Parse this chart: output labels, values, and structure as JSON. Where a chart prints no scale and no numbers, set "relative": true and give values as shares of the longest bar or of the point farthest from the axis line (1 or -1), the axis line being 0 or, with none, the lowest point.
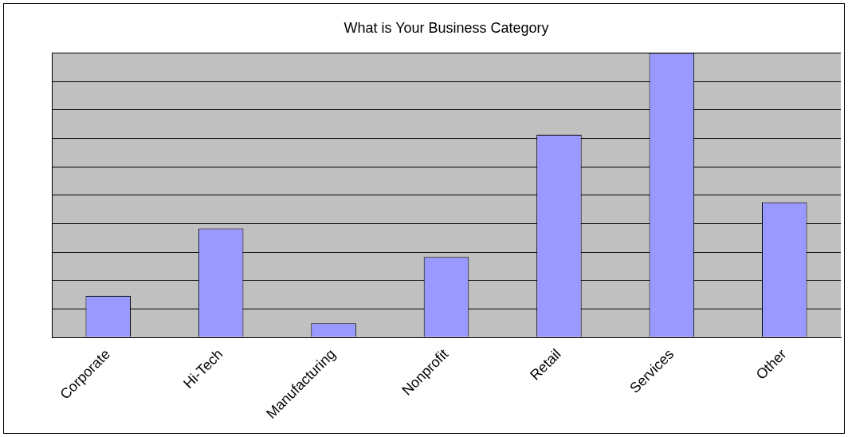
{
  "chart_data": {
    "type": "bar",
    "title": "What is Your Business Category",
    "categories": [
      "Corporate",
      "Hi-Tech",
      "Manufacturing",
      "Nonprofit",
      "Retail",
      "Services",
      "Other"
    ],
    "values": [
      0.146,
      0.383,
      0.05,
      0.283,
      0.713,
      1,
      0.475
    ],
    "color": "#9999ff",
    "relative": true,
    "grid": "y",
    "legend": false
  }
}
